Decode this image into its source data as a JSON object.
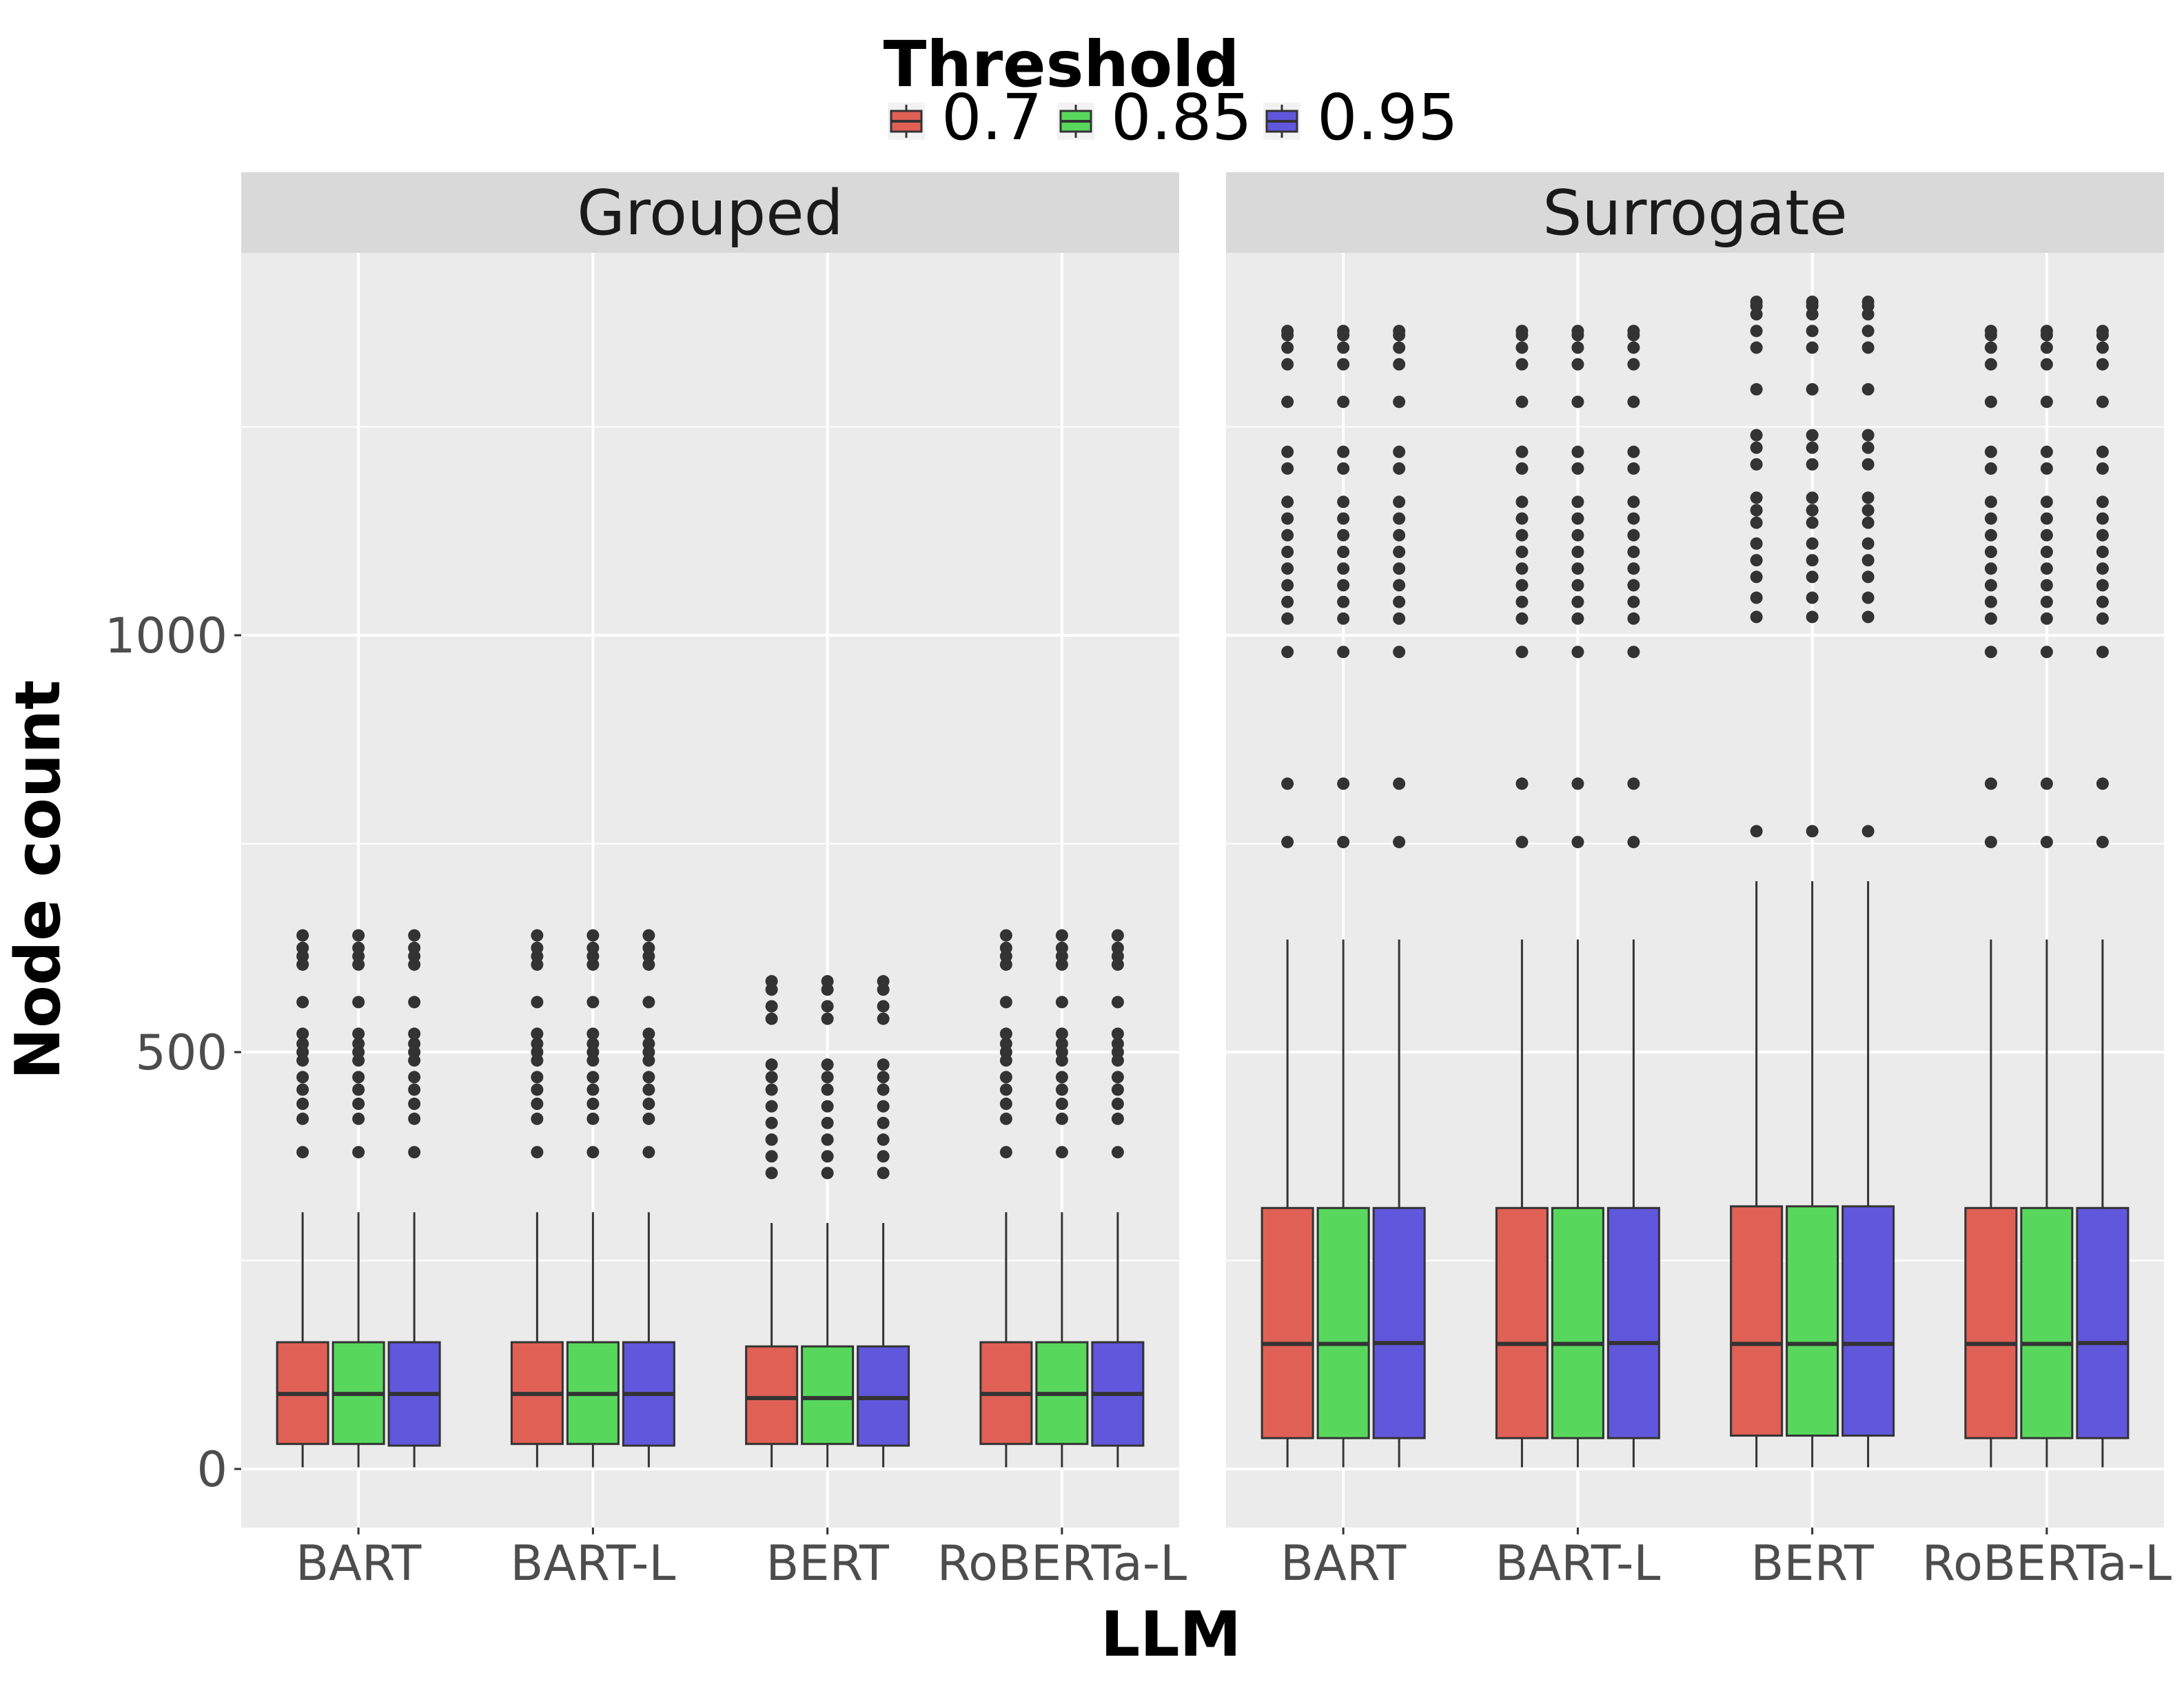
{
  "chart_data": {
    "type": "boxplot",
    "xlabel": "LLM",
    "ylabel": "Node count",
    "legend": {
      "title": "Threshold",
      "position": "top",
      "entries": [
        "0.7",
        "0.85",
        "0.95"
      ]
    },
    "colors": {
      "0.7": "#e06055",
      "0.85": "#57d85d",
      "0.95": "#6157dd"
    },
    "ylim": [
      -70,
      1460
    ],
    "yticks": [
      0,
      500,
      1000
    ],
    "ytick_labels": [
      "0",
      "500",
      "1000"
    ],
    "grid": true,
    "categories": [
      "BART",
      "BART-L",
      "BERT",
      "RoBERTa-L"
    ],
    "panels": [
      {
        "name": "Grouped",
        "groups": [
          {
            "llm": "BART",
            "boxes": [
              {
                "threshold": "0.7",
                "min": 2,
                "q1": 30,
                "median": 90,
                "q3": 152,
                "max": 308
              },
              {
                "threshold": "0.85",
                "min": 2,
                "q1": 30,
                "median": 90,
                "q3": 152,
                "max": 308
              },
              {
                "threshold": "0.95",
                "min": 2,
                "q1": 28,
                "median": 90,
                "q3": 152,
                "max": 308
              }
            ],
            "outliers": [
              380,
              420,
              438,
              455,
              470,
              490,
              500,
              510,
              522,
              560,
              605,
              615,
              625,
              640
            ]
          },
          {
            "llm": "BART-L",
            "boxes": [
              {
                "threshold": "0.7",
                "min": 2,
                "q1": 30,
                "median": 90,
                "q3": 152,
                "max": 308
              },
              {
                "threshold": "0.85",
                "min": 2,
                "q1": 30,
                "median": 90,
                "q3": 152,
                "max": 308
              },
              {
                "threshold": "0.95",
                "min": 2,
                "q1": 28,
                "median": 90,
                "q3": 152,
                "max": 308
              }
            ],
            "outliers": [
              380,
              420,
              438,
              455,
              470,
              490,
              500,
              510,
              522,
              560,
              605,
              615,
              625,
              640
            ]
          },
          {
            "llm": "BERT",
            "boxes": [
              {
                "threshold": "0.7",
                "min": 2,
                "q1": 30,
                "median": 85,
                "q3": 147,
                "max": 295
              },
              {
                "threshold": "0.85",
                "min": 2,
                "q1": 30,
                "median": 85,
                "q3": 147,
                "max": 295
              },
              {
                "threshold": "0.95",
                "min": 2,
                "q1": 28,
                "median": 85,
                "q3": 147,
                "max": 295
              }
            ],
            "outliers": [
              355,
              375,
              395,
              415,
              435,
              455,
              470,
              485,
              540,
              555,
              575,
              585
            ]
          },
          {
            "llm": "RoBERTa-L",
            "boxes": [
              {
                "threshold": "0.7",
                "min": 2,
                "q1": 30,
                "median": 90,
                "q3": 152,
                "max": 308
              },
              {
                "threshold": "0.85",
                "min": 2,
                "q1": 30,
                "median": 90,
                "q3": 152,
                "max": 308
              },
              {
                "threshold": "0.95",
                "min": 2,
                "q1": 28,
                "median": 90,
                "q3": 152,
                "max": 308
              }
            ],
            "outliers": [
              380,
              420,
              438,
              455,
              470,
              490,
              500,
              510,
              522,
              560,
              605,
              615,
              625,
              640
            ]
          }
        ]
      },
      {
        "name": "Surrogate",
        "groups": [
          {
            "llm": "BART",
            "boxes": [
              {
                "threshold": "0.7",
                "min": 2,
                "q1": 37,
                "median": 150,
                "q3": 313,
                "max": 635
              },
              {
                "threshold": "0.85",
                "min": 2,
                "q1": 37,
                "median": 150,
                "q3": 313,
                "max": 635
              },
              {
                "threshold": "0.95",
                "min": 2,
                "q1": 37,
                "median": 151,
                "q3": 313,
                "max": 635
              }
            ],
            "outliers": [
              752,
              822,
              980,
              1020,
              1040,
              1060,
              1080,
              1100,
              1120,
              1140,
              1160,
              1200,
              1220,
              1280,
              1325,
              1345,
              1360,
              1365
            ]
          },
          {
            "llm": "BART-L",
            "boxes": [
              {
                "threshold": "0.7",
                "min": 2,
                "q1": 37,
                "median": 150,
                "q3": 313,
                "max": 635
              },
              {
                "threshold": "0.85",
                "min": 2,
                "q1": 37,
                "median": 150,
                "q3": 313,
                "max": 635
              },
              {
                "threshold": "0.95",
                "min": 2,
                "q1": 37,
                "median": 151,
                "q3": 313,
                "max": 635
              }
            ],
            "outliers": [
              752,
              822,
              980,
              1020,
              1040,
              1060,
              1080,
              1100,
              1120,
              1140,
              1160,
              1200,
              1220,
              1280,
              1325,
              1345,
              1360,
              1365
            ]
          },
          {
            "llm": "BERT",
            "boxes": [
              {
                "threshold": "0.7",
                "min": 2,
                "q1": 40,
                "median": 150,
                "q3": 315,
                "max": 705
              },
              {
                "threshold": "0.85",
                "min": 2,
                "q1": 40,
                "median": 150,
                "q3": 315,
                "max": 705
              },
              {
                "threshold": "0.95",
                "min": 2,
                "q1": 40,
                "median": 150,
                "q3": 315,
                "max": 705
              }
            ],
            "outliers": [
              765,
              1022,
              1045,
              1070,
              1090,
              1110,
              1135,
              1150,
              1165,
              1205,
              1225,
              1240,
              1295,
              1345,
              1365,
              1385,
              1395,
              1400
            ]
          },
          {
            "llm": "RoBERTa-L",
            "boxes": [
              {
                "threshold": "0.7",
                "min": 2,
                "q1": 37,
                "median": 150,
                "q3": 313,
                "max": 635
              },
              {
                "threshold": "0.85",
                "min": 2,
                "q1": 37,
                "median": 150,
                "q3": 313,
                "max": 635
              },
              {
                "threshold": "0.95",
                "min": 2,
                "q1": 37,
                "median": 151,
                "q3": 313,
                "max": 635
              }
            ],
            "outliers": [
              752,
              822,
              980,
              1020,
              1040,
              1060,
              1080,
              1100,
              1120,
              1140,
              1160,
              1200,
              1220,
              1280,
              1325,
              1345,
              1360,
              1365
            ]
          }
        ]
      }
    ]
  }
}
